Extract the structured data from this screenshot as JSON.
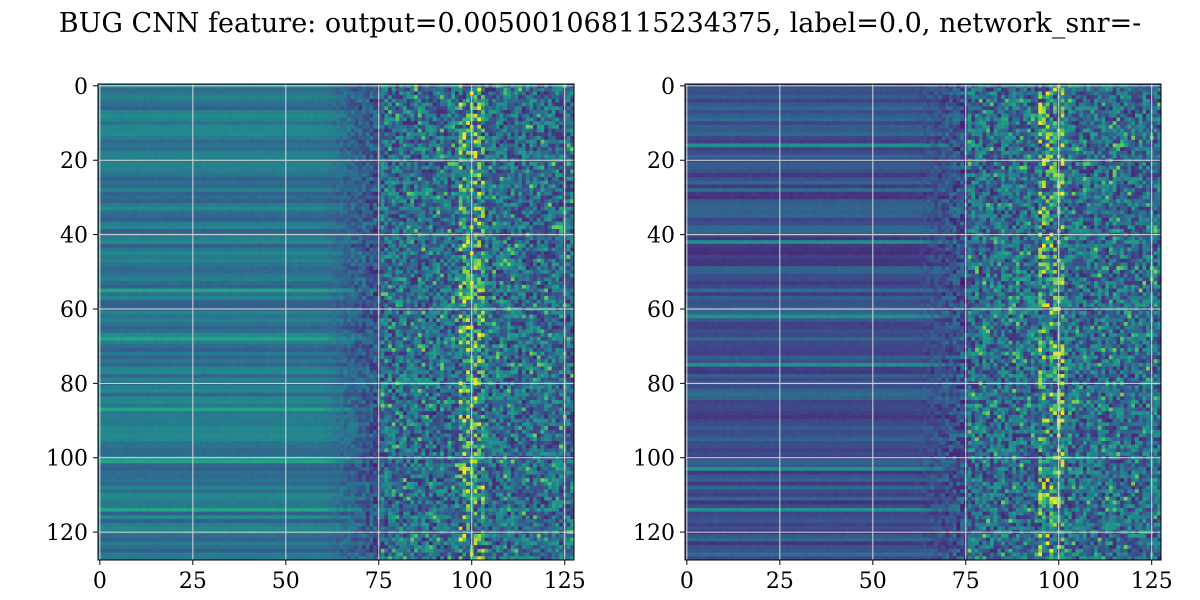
{
  "figure": {
    "title": "BUG CNN feature: output=0.005001068115234375, label=0.0, network_snr=-"
  },
  "chart_data": [
    {
      "type": "heatmap",
      "title": "",
      "xlabel": "",
      "ylabel": "",
      "colormap": "viridis",
      "shape": [
        128,
        128
      ],
      "xlim": [
        0,
        127
      ],
      "ylim": [
        127,
        0
      ],
      "grid": true,
      "x_ticks": [
        0,
        25,
        50,
        75,
        100,
        125
      ],
      "y_ticks": [
        0,
        20,
        40,
        60,
        80,
        100,
        120
      ],
      "x_tick_labels": [
        "0",
        "25",
        "50",
        "75",
        "100",
        "125"
      ],
      "y_tick_labels": [
        "0",
        "20",
        "40",
        "60",
        "80",
        "100",
        "120"
      ],
      "description_values": "columns 0-75 show smooth horizontal stripes of mid-range values; columns 75-127 show noisy high-variance values with bright spots near column 100"
    },
    {
      "type": "heatmap",
      "title": "",
      "xlabel": "",
      "ylabel": "",
      "colormap": "viridis",
      "shape": [
        128,
        128
      ],
      "xlim": [
        0,
        127
      ],
      "ylim": [
        127,
        0
      ],
      "grid": true,
      "x_ticks": [
        0,
        25,
        50,
        75,
        100,
        125
      ],
      "y_ticks": [
        0,
        20,
        40,
        60,
        80,
        100,
        120
      ],
      "x_tick_labels": [
        "0",
        "25",
        "50",
        "75",
        "100",
        "125"
      ],
      "y_tick_labels": [
        "0",
        "20",
        "40",
        "60",
        "80",
        "100",
        "120"
      ],
      "description_values": "columns 0-75 show darker smooth horizontal stripes; columns 75-127 show noisy values with bright spots near column 97-100"
    }
  ],
  "colors": {
    "viridis_low": "#440154",
    "viridis_mid": "#21918c",
    "viridis_high": "#fde725",
    "grid": "#d9d9d9"
  }
}
